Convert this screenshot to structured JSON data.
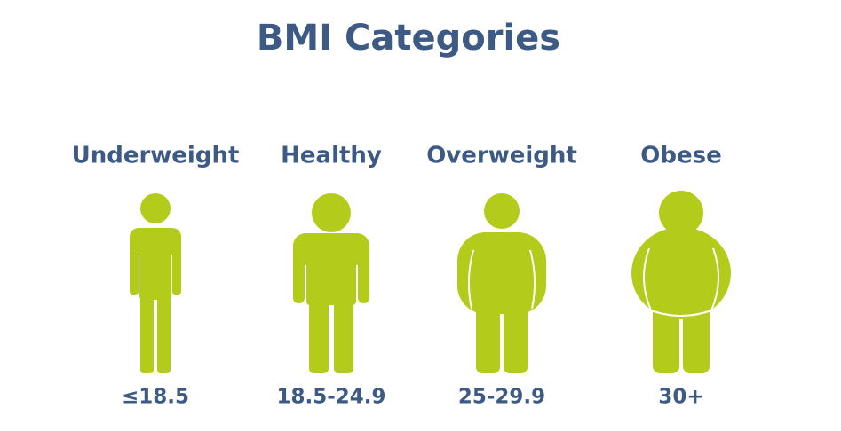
{
  "title": "BMI Categories",
  "categories": [
    {
      "label": "Underweight",
      "range": "≤18.5"
    },
    {
      "label": "Healthy",
      "range": "18.5-24.9"
    },
    {
      "label": "Overweight",
      "range": "25-29.9"
    },
    {
      "label": "Obese",
      "range": "30+"
    }
  ]
}
